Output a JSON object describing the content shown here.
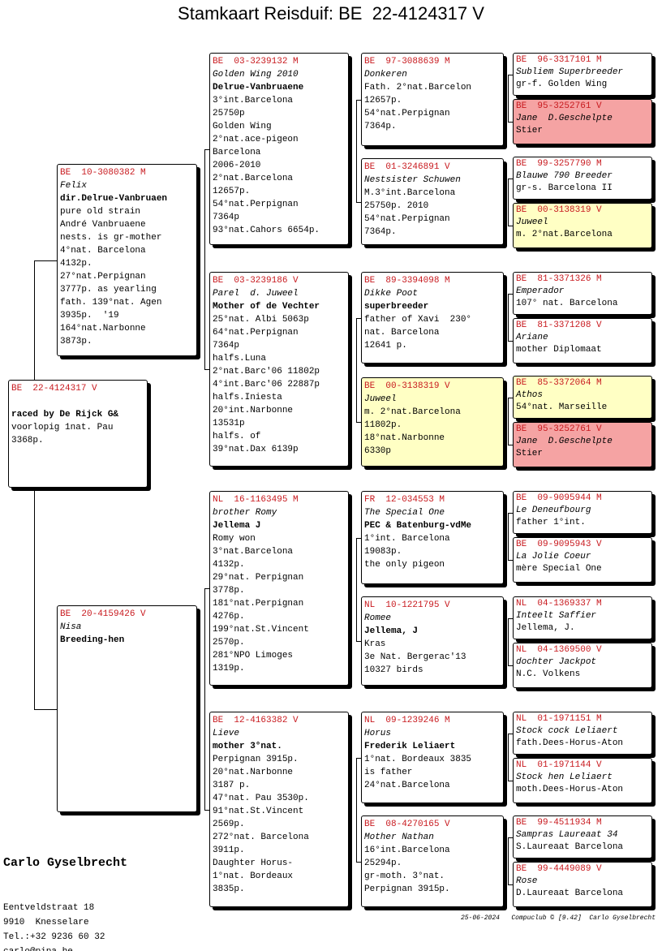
{
  "title": "Stamkaart Reisduif: BE  22-4124317 V",
  "subject": {
    "ring": "BE  22-4124317 V",
    "owner": "raced by De Rijck G&",
    "lines": [
      "voorlopig 1nat. Pau",
      "3368p."
    ]
  },
  "generations": [
    [
      {
        "ring": "BE  10-3080382 M",
        "name": "Felix",
        "owner": "dir.Delrue-Vanbruaen",
        "lines": [
          "pure old strain",
          "André Vanbruaene",
          "nests. is gr-mother",
          "4°nat. Barcelona",
          "4132p.",
          "27°nat.Perpignan",
          "3777p. as yearling",
          "fath. 139°nat. Agen",
          "3935p.  '19",
          "164°nat.Narbonne",
          "3873p."
        ]
      },
      {
        "ring": "BE  20-4159426 V",
        "name": "Nisa",
        "owner": "Breeding-hen"
      }
    ],
    [
      {
        "ring": "BE  03-3239132 M",
        "name": "Golden Wing 2010",
        "owner": "Delrue-Vanbruaene",
        "lines": [
          "3°int.Barcelona",
          "25750p",
          "Golden Wing",
          "2°nat.ace-pigeon",
          "Barcelona",
          "2006-2010",
          "2°nat.Barcelona",
          "12657p.",
          "54°nat.Perpignan",
          "7364p",
          "93°nat.Cahors 6654p."
        ]
      },
      {
        "ring": "BE  03-3239186 V",
        "name": "Parel  d. Juweel",
        "owner": "Mother of de Vechter",
        "lines": [
          "25°nat. Albi 5063p",
          "64°nat.Perpignan",
          "7364p",
          "halfs.Luna",
          "2°nat.Barc'06 11802p",
          "4°int.Barc'06 22887p",
          "halfs.Iniesta",
          "20°int.Narbonne",
          "13531p",
          "halfs. of",
          "39°nat.Dax 6139p"
        ]
      },
      {
        "ring": "NL  16-1163495 M",
        "name": "brother Romy",
        "owner": "Jellema J",
        "lines": [
          "Romy won",
          "3°nat.Barcelona",
          "4132p.",
          "29°nat. Perpignan",
          "3778p.",
          "181°nat.Perpignan",
          "4276p.",
          "199°nat.St.Vincent",
          "2570p.",
          "281°NPO Limoges",
          "1319p."
        ]
      },
      {
        "ring": "BE  12-4163382 V",
        "name": "Lieve",
        "owner": "mother 3°nat.",
        "lines": [
          "Perpignan 3915p.",
          "20°nat.Narbonne",
          "3187 p.",
          "47°nat. Pau 3530p.",
          "91°nat.St.Vincent",
          "2569p.",
          "272°nat. Barcelona",
          "3911p.",
          "Daughter Horus-",
          "1°nat. Bordeaux",
          "3835p."
        ]
      }
    ],
    [
      {
        "ring": "BE  97-3088639 M",
        "name": "Donkeren",
        "lines": [
          "Fath. 2°nat.Barcelon",
          "12657p.",
          "54°nat.Perpignan",
          "7364p."
        ]
      },
      {
        "ring": "BE  01-3246891 V",
        "name": "Nestsister Schuwen",
        "lines": [
          "M.3°int.Barcelona",
          "25750p. 2010",
          "54°nat.Perpignan",
          "7364p."
        ]
      },
      {
        "ring": "BE  89-3394098 M",
        "name": "Dikke Poot",
        "owner": "superbreeder",
        "lines": [
          "father of Xavi  230°",
          "nat. Barcelona",
          "12641 p."
        ]
      },
      {
        "ring": "BE  00-3138319 V",
        "name": "Juweel",
        "lines": [
          "m. 2°nat.Barcelona",
          "11802p.",
          "18°nat.Narbonne",
          "6330p"
        ],
        "color": "#ffffc4"
      },
      {
        "ring": "FR  12-034553 M",
        "name": "The Special One",
        "owner": "PEC & Batenburg-vdMe",
        "lines": [
          "1°int. Barcelona",
          "19083p.",
          "the only pigeon"
        ]
      },
      {
        "ring": "NL  10-1221795 V",
        "name": "Romee",
        "owner": "Jellema, J",
        "lines": [
          "Kras",
          "3e Nat. Bergerac'13",
          "10327 birds"
        ]
      },
      {
        "ring": "NL  09-1239246 M",
        "name": "Horus",
        "owner": "Frederik Leliaert",
        "lines": [
          "1°nat. Bordeaux 3835",
          "is father",
          "24°nat.Barcelona"
        ]
      },
      {
        "ring": "BE  08-4270165 V",
        "name": "Mother Nathan",
        "lines": [
          "16°int.Barcelona",
          "25294p.",
          "gr-moth. 3°nat.",
          "Perpignan 3915p."
        ]
      }
    ],
    [
      {
        "ring": "BE  96-3317101 M",
        "name": "Subliem Superbreeder",
        "lines": [
          "gr-f. Golden Wing"
        ]
      },
      {
        "ring": "BE  95-3252761 V",
        "name": "Jane  D.Geschelpte",
        "lines": [
          "Stier"
        ],
        "color": "#f5a3a3"
      },
      {
        "ring": "BE  99-3257790 M",
        "name": "Blauwe 790 Breeder",
        "lines": [
          "gr-s. Barcelona II"
        ]
      },
      {
        "ring": "BE  00-3138319 V",
        "name": "Juweel",
        "lines": [
          "m. 2°nat.Barcelona"
        ],
        "color": "#ffffc4"
      },
      {
        "ring": "BE  81-3371326 M",
        "name": "Emperador",
        "lines": [
          "107° nat. Barcelona"
        ]
      },
      {
        "ring": "BE  81-3371208 V",
        "name": "Ariane",
        "lines": [
          "mother Diplomaat"
        ]
      },
      {
        "ring": "BE  85-3372064 M",
        "name": "Athos",
        "lines": [
          "54°nat. Marseille"
        ],
        "color": "#ffffc4"
      },
      {
        "ring": "BE  95-3252761 V",
        "name": "Jane  D.Geschelpte",
        "lines": [
          "Stier"
        ],
        "color": "#f5a3a3"
      },
      {
        "ring": "BE  09-9095944 M",
        "name": "Le Deneufbourg",
        "lines": [
          "father 1°int."
        ]
      },
      {
        "ring": "BE  09-9095943 V",
        "name": "La Jolie Coeur",
        "lines": [
          "mère Special One"
        ]
      },
      {
        "ring": "NL  04-1369337 M",
        "name": "Inteelt Saffier",
        "lines": [
          "Jellema, J."
        ]
      },
      {
        "ring": "NL  04-1369500 V",
        "name": "dochter Jackpot",
        "lines": [
          "N.C. Volkens"
        ]
      },
      {
        "ring": "NL  01-1971151 M",
        "name": "Stock cock Leliaert",
        "lines": [
          "fath.Dees-Horus-Aton"
        ]
      },
      {
        "ring": "NL  01-1971144 V",
        "name": "Stock hen Leliaert",
        "lines": [
          "moth.Dees-Horus-Aton"
        ]
      },
      {
        "ring": "BE  99-4511934 M",
        "name": "Sampras Laureaat 34",
        "lines": [
          "S.Laureaat Barcelona"
        ]
      },
      {
        "ring": "BE  99-4449089 V",
        "name": "Rose",
        "lines": [
          "D.Laureaat Barcelona"
        ]
      }
    ]
  ],
  "breeder": {
    "name": "Carlo Gyselbrecht",
    "lines": [
      "Eentveldstraat 18",
      "9910  Knesselare",
      "Tel.:+32 9236 60 32",
      "carlo@pipa.be"
    ]
  },
  "footer": "25-06-2024   Compuclub © [9.42]  Carlo Gyselbrecht"
}
